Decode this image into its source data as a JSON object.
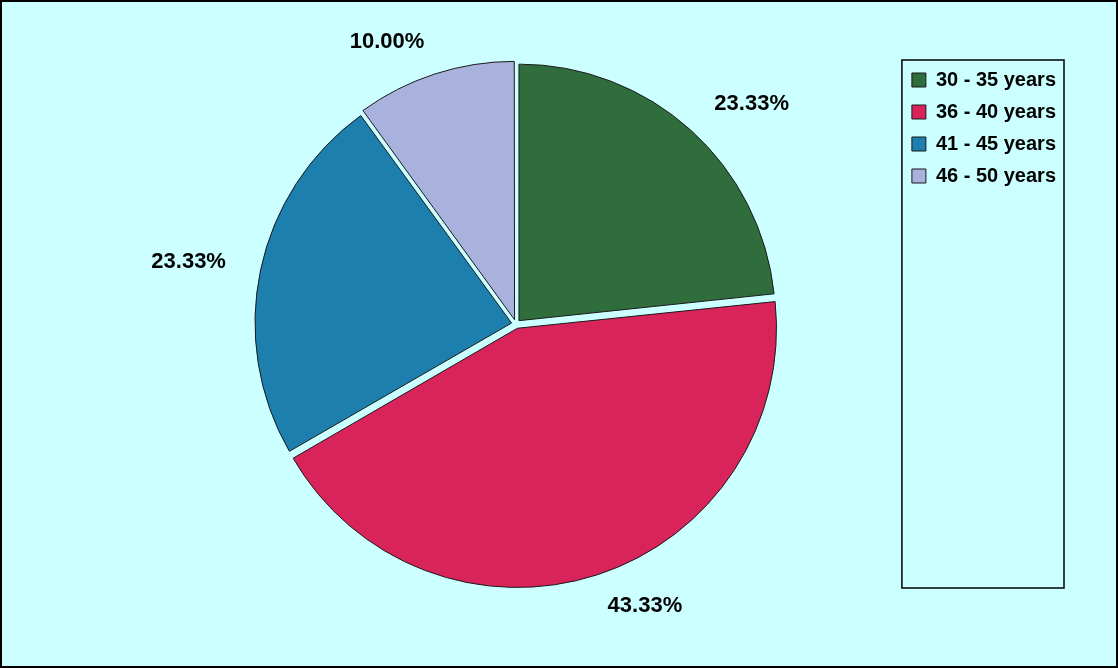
{
  "chart_data": {
    "type": "pie",
    "categories": [
      "30 - 35 years",
      "36 - 40 years",
      "41 - 45 years",
      "46 - 50 years"
    ],
    "values": [
      23.33,
      43.33,
      23.33,
      10.0
    ],
    "value_labels": [
      "23.33%",
      "43.33%",
      "23.33%",
      "10.00%"
    ],
    "colors": [
      "#2f6e3c",
      "#d8245a",
      "#1c7fae",
      "#a9b2dc"
    ],
    "legend": "top-right",
    "data_labels": true
  }
}
